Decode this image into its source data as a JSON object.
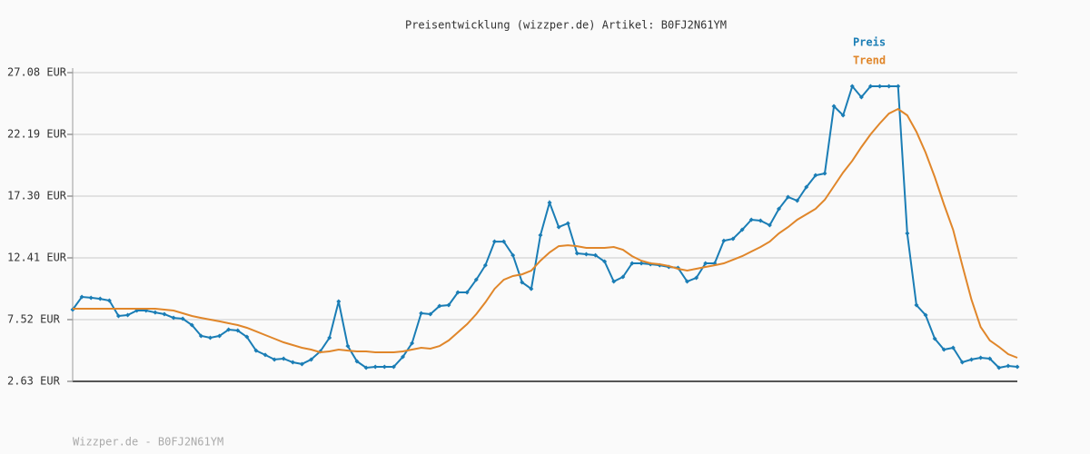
{
  "chart_data": {
    "type": "line",
    "title": "Preisentwicklung (wizzper.de) Artikel: B0FJ2N61YM",
    "footer": "Wizzper.de - B0FJ2N61YM",
    "ylim": [
      2.63,
      27.08
    ],
    "yticks": [
      {
        "value": 2.63,
        "label": "2.63 EUR"
      },
      {
        "value": 7.52,
        "label": "7.52 EUR"
      },
      {
        "value": 12.41,
        "label": "12.41 EUR"
      },
      {
        "value": 17.3,
        "label": "17.30 EUR"
      },
      {
        "value": 22.19,
        "label": "22.19 EUR"
      },
      {
        "value": 27.08,
        "label": "27.08 EUR"
      }
    ],
    "grid": true,
    "legend": "top-right",
    "series": [
      {
        "name": "Preis",
        "color": "#1a7db5",
        "markers": true,
        "values": [
          8.31,
          9.32,
          9.25,
          9.17,
          9.03,
          7.81,
          7.88,
          8.24,
          8.24,
          8.09,
          7.95,
          7.66,
          7.59,
          7.09,
          6.23,
          6.08,
          6.23,
          6.73,
          6.66,
          6.15,
          5.07,
          4.72,
          4.36,
          4.43,
          4.14,
          4.0,
          4.36,
          5.0,
          6.08,
          8.96,
          5.43,
          4.21,
          3.71,
          3.78,
          3.78,
          3.78,
          4.57,
          5.65,
          8.02,
          7.95,
          8.6,
          8.67,
          9.68,
          9.68,
          10.68,
          11.83,
          13.7,
          13.7,
          12.62,
          10.47,
          9.96,
          14.21,
          16.79,
          14.85,
          15.14,
          12.77,
          12.7,
          12.62,
          12.12,
          10.54,
          10.9,
          11.98,
          11.98,
          11.91,
          11.83,
          11.69,
          11.62,
          10.54,
          10.83,
          11.98,
          11.98,
          13.77,
          13.92,
          14.64,
          15.43,
          15.36,
          15.0,
          16.29,
          17.23,
          16.94,
          18.02,
          18.95,
          19.1,
          24.42,
          23.7,
          26.0,
          25.14,
          26.0,
          26.0,
          26.0,
          26.0,
          14.35,
          8.67,
          7.88,
          6.01,
          5.15,
          5.29,
          4.14,
          4.36,
          4.5,
          4.43,
          3.71,
          3.85,
          3.78
        ]
      },
      {
        "name": "Trend",
        "color": "#e0862a",
        "markers": false,
        "values": [
          8.38,
          8.38,
          8.38,
          8.38,
          8.38,
          8.38,
          8.38,
          8.38,
          8.38,
          8.38,
          8.31,
          8.24,
          8.02,
          7.81,
          7.66,
          7.52,
          7.38,
          7.23,
          7.09,
          6.87,
          6.59,
          6.3,
          6.01,
          5.72,
          5.51,
          5.29,
          5.15,
          4.93,
          5.0,
          5.15,
          5.07,
          5.0,
          5.0,
          4.93,
          4.93,
          4.93,
          5.0,
          5.15,
          5.29,
          5.22,
          5.43,
          5.87,
          6.51,
          7.16,
          7.95,
          8.89,
          9.96,
          10.68,
          10.97,
          11.11,
          11.4,
          12.19,
          12.84,
          13.34,
          13.41,
          13.34,
          13.2,
          13.2,
          13.2,
          13.27,
          13.06,
          12.55,
          12.19,
          11.98,
          11.91,
          11.76,
          11.55,
          11.4,
          11.55,
          11.69,
          11.83,
          11.98,
          12.26,
          12.55,
          12.91,
          13.27,
          13.7,
          14.35,
          14.85,
          15.43,
          15.86,
          16.29,
          17.01,
          18.09,
          19.17,
          20.1,
          21.18,
          22.19,
          23.05,
          23.84,
          24.2,
          23.7,
          22.4,
          20.75,
          18.81,
          16.65,
          14.64,
          11.83,
          9.1,
          6.94,
          5.87,
          5.36,
          4.79,
          4.5
        ]
      }
    ]
  }
}
